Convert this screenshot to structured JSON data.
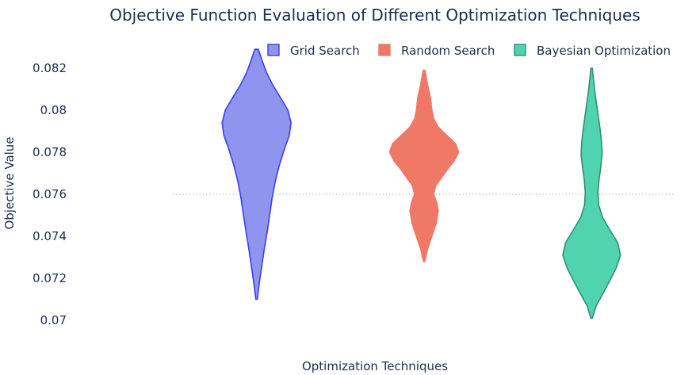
{
  "chart_data": {
    "type": "violin",
    "title": "Objective Function Evaluation of Different Optimization Techniques",
    "xlabel": "Optimization Techniques",
    "ylabel": "Objective Value",
    "ylim": [
      0.07,
      0.0832
    ],
    "yticks": [
      "0.07",
      "0.072",
      "0.074",
      "0.076",
      "0.078",
      "0.08",
      "0.082"
    ],
    "reference_line": {
      "y": 0.076,
      "style": "dotted"
    },
    "legend_position": "top-right",
    "series": [
      {
        "name": "Grid Search",
        "fill": "#8f95ef",
        "line": "#3b3fe6",
        "density": [
          [
            0.071,
            0.02
          ],
          [
            0.0718,
            0.08
          ],
          [
            0.0726,
            0.15
          ],
          [
            0.0734,
            0.22
          ],
          [
            0.0742,
            0.3
          ],
          [
            0.075,
            0.37
          ],
          [
            0.0758,
            0.44
          ],
          [
            0.0766,
            0.53
          ],
          [
            0.0774,
            0.65
          ],
          [
            0.0782,
            0.8
          ],
          [
            0.0788,
            0.93
          ],
          [
            0.0794,
            0.98
          ],
          [
            0.08,
            0.89
          ],
          [
            0.0806,
            0.68
          ],
          [
            0.0812,
            0.46
          ],
          [
            0.0818,
            0.28
          ],
          [
            0.0824,
            0.15
          ],
          [
            0.0829,
            0.05
          ]
        ]
      },
      {
        "name": "Random Search",
        "fill": "#ef7966",
        "line": "#ef7966",
        "density": [
          [
            0.0728,
            0.02
          ],
          [
            0.0734,
            0.1
          ],
          [
            0.074,
            0.22
          ],
          [
            0.0746,
            0.34
          ],
          [
            0.0752,
            0.4
          ],
          [
            0.0756,
            0.36
          ],
          [
            0.076,
            0.27
          ],
          [
            0.0764,
            0.33
          ],
          [
            0.0768,
            0.5
          ],
          [
            0.0772,
            0.67
          ],
          [
            0.0776,
            0.86
          ],
          [
            0.078,
            0.98
          ],
          [
            0.0784,
            0.9
          ],
          [
            0.0788,
            0.65
          ],
          [
            0.0792,
            0.4
          ],
          [
            0.0796,
            0.27
          ],
          [
            0.08,
            0.22
          ],
          [
            0.0806,
            0.18
          ],
          [
            0.0812,
            0.1
          ],
          [
            0.0819,
            0.03
          ]
        ]
      },
      {
        "name": "Bayesian Optimization",
        "fill": "#4fd4ad",
        "line": "#2f8f75",
        "density": [
          [
            0.0701,
            0.02
          ],
          [
            0.0707,
            0.13
          ],
          [
            0.0713,
            0.33
          ],
          [
            0.0719,
            0.52
          ],
          [
            0.0725,
            0.7
          ],
          [
            0.0731,
            0.82
          ],
          [
            0.0737,
            0.74
          ],
          [
            0.0743,
            0.52
          ],
          [
            0.0749,
            0.31
          ],
          [
            0.0755,
            0.2
          ],
          [
            0.0761,
            0.18
          ],
          [
            0.0767,
            0.21
          ],
          [
            0.0773,
            0.26
          ],
          [
            0.0779,
            0.3
          ],
          [
            0.0785,
            0.28
          ],
          [
            0.0791,
            0.24
          ],
          [
            0.0797,
            0.19
          ],
          [
            0.0803,
            0.14
          ],
          [
            0.0809,
            0.09
          ],
          [
            0.0815,
            0.05
          ],
          [
            0.082,
            0.02
          ]
        ]
      }
    ]
  }
}
